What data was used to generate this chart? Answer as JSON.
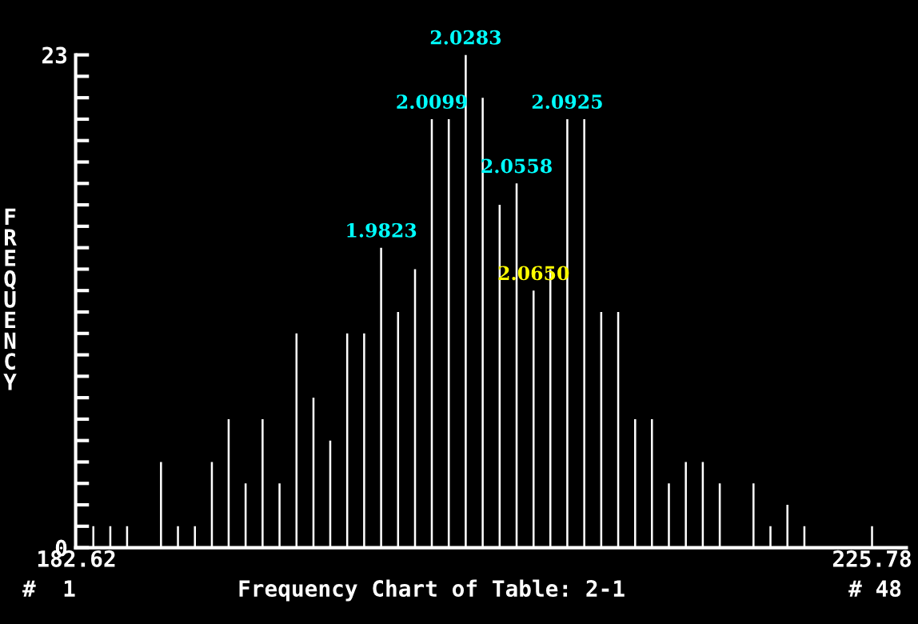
{
  "chart_data": {
    "type": "bar",
    "title": "Frequency Chart of Table: 2-1",
    "ylabel": "FREQUENCY",
    "x": [
      182.62,
      183.54,
      184.46,
      185.37,
      186.29,
      187.21,
      188.13,
      189.05,
      189.97,
      190.88,
      191.8,
      192.72,
      193.64,
      194.56,
      195.48,
      196.39,
      197.31,
      198.23,
      199.15,
      200.07,
      200.99,
      201.9,
      202.82,
      203.74,
      204.66,
      205.58,
      206.5,
      207.42,
      208.33,
      209.25,
      210.17,
      211.09,
      212.01,
      212.93,
      213.84,
      214.76,
      215.68,
      216.6,
      217.52,
      218.44,
      219.35,
      220.27,
      221.19,
      222.11,
      223.03,
      223.95,
      224.86,
      225.78
    ],
    "values": [
      0,
      1,
      1,
      1,
      0,
      4,
      1,
      1,
      4,
      6,
      3,
      6,
      3,
      10,
      7,
      5,
      10,
      10,
      14,
      11,
      13,
      20,
      20,
      23,
      21,
      16,
      17,
      12,
      13,
      20,
      20,
      11,
      11,
      6,
      6,
      3,
      4,
      4,
      3,
      0,
      3,
      1,
      2,
      1,
      0,
      0,
      0,
      1
    ],
    "color": "#ffffff",
    "xlim": [
      182.58,
      227.64
    ],
    "xticks": [
      182.62,
      225.78
    ],
    "ylim": [
      0,
      23
    ],
    "yticks": [
      0,
      {
        "value": 1,
        "label": null
      },
      {
        "value": 2,
        "label": null
      },
      {
        "value": 3,
        "label": null
      },
      {
        "value": 4,
        "label": null
      },
      {
        "value": 5,
        "label": null
      },
      {
        "value": 6,
        "label": null
      },
      {
        "value": 7,
        "label": null
      },
      {
        "value": 8,
        "label": null
      },
      {
        "value": 9,
        "label": null
      },
      {
        "value": 10,
        "label": null
      },
      {
        "value": 11,
        "label": null
      },
      {
        "value": 12,
        "label": null
      },
      {
        "value": 13,
        "label": null
      },
      {
        "value": 14,
        "label": null
      },
      {
        "value": 15,
        "label": null
      },
      {
        "value": 16,
        "label": null
      },
      {
        "value": 17,
        "label": null
      },
      {
        "value": 18,
        "label": null
      },
      {
        "value": 19,
        "label": null
      },
      {
        "value": 20,
        "label": null
      },
      {
        "value": 21,
        "label": null
      },
      {
        "value": 22,
        "label": null
      },
      23
    ],
    "annotations": [
      {
        "text": "1.9823",
        "x": 199.15,
        "y": 14
      },
      {
        "text": "2.0099",
        "x": 201.9,
        "y": 20
      },
      {
        "text": "2.0283",
        "x": 203.74,
        "y": 23
      },
      {
        "text": "2.0558",
        "x": 206.5,
        "y": 17
      },
      {
        "text": "2.0650",
        "x": 207.42,
        "y": 12
      },
      {
        "text": "2.0925",
        "x": 209.25,
        "y": 20
      },
      "#  1",
      "# 48"
    ],
    "grid": false,
    "legend": false
  }
}
